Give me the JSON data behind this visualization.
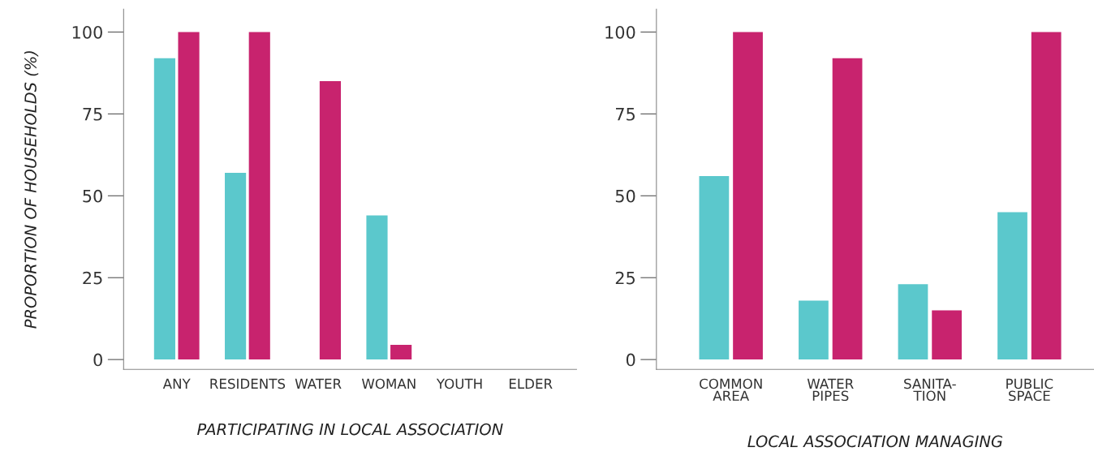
{
  "chart_data": [
    {
      "type": "bar",
      "xlabel": "PARTICIPATING IN LOCAL ASSOCIATION",
      "ylabel": "PROPORTION OF HOUSEHOLDS (%)",
      "categories": [
        "ANY",
        "RESIDENTS",
        "WATER",
        "WOMAN",
        "YOUTH",
        "ELDER"
      ],
      "series": [
        {
          "color": "#5bc8cc",
          "values": [
            92,
            57,
            0,
            44,
            0,
            0
          ]
        },
        {
          "color": "#c8236e",
          "values": [
            100,
            100,
            85,
            4.5,
            0,
            0
          ]
        }
      ],
      "ylim": [
        -3,
        107
      ],
      "yticks": [
        0,
        25,
        50,
        75,
        100
      ],
      "grid": false,
      "legend": false
    },
    {
      "type": "bar",
      "xlabel": "LOCAL ASSOCIATION MANAGING",
      "categories": [
        "COMMON\nAREA",
        "WATER\nPIPES",
        "SANITA-\nTION",
        "PUBLIC\nSPACE"
      ],
      "series": [
        {
          "color": "#5bc8cc",
          "values": [
            56,
            18,
            23,
            45
          ]
        },
        {
          "color": "#c8236e",
          "values": [
            100,
            92,
            15,
            100
          ]
        }
      ],
      "ylim": [
        -3,
        107
      ],
      "yticks": [
        0,
        25,
        50,
        75,
        100
      ],
      "grid": false,
      "legend": false
    }
  ]
}
